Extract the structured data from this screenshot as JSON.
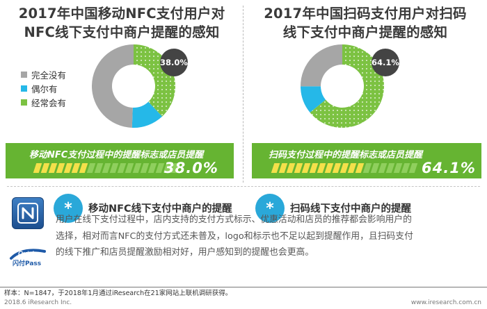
{
  "left": {
    "title_lines": [
      "2017年中国移动NFC支付用户对",
      "NFC线下支付中商户提醒的感知"
    ],
    "badge": "38.0%",
    "banner_text": "移动NFC支付过程中的提醒标志或店员提醒",
    "banner_pct": "38.0%",
    "subheading": "移动NFC线下支付中商户的提醒"
  },
  "right": {
    "title_lines": [
      "2017年中国扫码支付用户对扫码",
      "线下支付中商户提醒的感知"
    ],
    "badge": "64.1%",
    "banner_text": "扫码支付过程中的提醒标志或店员提醒",
    "banner_pct": "64.1%",
    "subheading": "扫码线下支付中商户的提醒"
  },
  "legend": {
    "items": [
      {
        "label": "完全没有",
        "color": "#a6a6a6"
      },
      {
        "label": "偶尔有",
        "color": "#25b8e8"
      },
      {
        "label": "经常会有",
        "color": "#7cc242"
      }
    ]
  },
  "paragraph": "用户在线下支付过程中，店内支持的支付方式标示、优惠活动和店员的推荐都会影响用户的选择，相对而言NFC的支付方式还未普及，logo和标示也不足以起到提醒作用，且扫码支付的线下推广和店员提醒激励相对好，用户感知到的提醒也会更高。",
  "footer": {
    "note": "样本：N=1847，于2018年1月通过iResearch在21家网站上联机调研获得。",
    "copyright": "2018.6 iResearch Inc.",
    "site": "www.iresearch.com.cn"
  },
  "icons": {
    "nfc": "nfc-n-icon",
    "quickpass_text": "Quick",
    "quickpass_cn": "闪付Pass"
  },
  "colors": {
    "never": "#a6a6a6",
    "sometimes": "#25b8e8",
    "often": "#7cc242",
    "banner": "#66b432",
    "badge": "#444444",
    "star": "#2aa8d9"
  },
  "chart_data": [
    {
      "type": "pie",
      "title": "2017年中国移动NFC支付用户对NFC线下支付中商户提醒的感知",
      "categories": [
        "完全没有",
        "偶尔有",
        "经常会有"
      ],
      "values": [
        49.4,
        12.6,
        38.0
      ],
      "labels": {
        "经常会有": "38.0%"
      }
    },
    {
      "type": "pie",
      "title": "2017年中国扫码支付用户对扫码线下支付中商户提醒的感知",
      "categories": [
        "完全没有",
        "偶尔有",
        "经常会有"
      ],
      "values": [
        25.1,
        10.8,
        64.1
      ],
      "labels": {
        "经常会有": "64.1%"
      }
    }
  ]
}
